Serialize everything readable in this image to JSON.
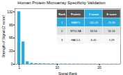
{
  "chart_data": {
    "type": "bar",
    "title": "Human Protein Microarray Specificity Validation",
    "xlabel": "Signal Rank",
    "ylabel": "Strength of Signal (Z score)",
    "x": [
      1,
      2,
      3,
      4,
      5,
      6,
      7,
      8,
      9,
      10,
      11,
      12,
      13,
      14,
      15,
      16,
      17,
      18,
      19,
      20,
      21,
      22,
      23,
      24,
      25
    ],
    "values": [
      132.43,
      56.54,
      6.41,
      2.5,
      1.8,
      1.5,
      1.3,
      1.1,
      1.0,
      0.9,
      0.8,
      0.75,
      0.7,
      0.65,
      0.6,
      0.58,
      0.55,
      0.52,
      0.5,
      0.48,
      0.46,
      0.44,
      0.42,
      0.4,
      0.38
    ],
    "color": "#29abe2",
    "xlim": [
      0,
      25
    ],
    "xticks": [
      1,
      10,
      20
    ],
    "ylim": [
      0,
      140
    ],
    "yticks": [
      0,
      33,
      66,
      99,
      132
    ],
    "table": [
      [
        "Rank",
        "Protein",
        "Z score",
        "S score"
      ],
      [
        "1",
        "FABP1",
        "132.43",
        "75.89"
      ],
      [
        "2",
        "NT5C3A",
        "56.54",
        "50.14"
      ],
      [
        "3",
        "HACL1",
        "6.41",
        "1.29"
      ]
    ]
  }
}
